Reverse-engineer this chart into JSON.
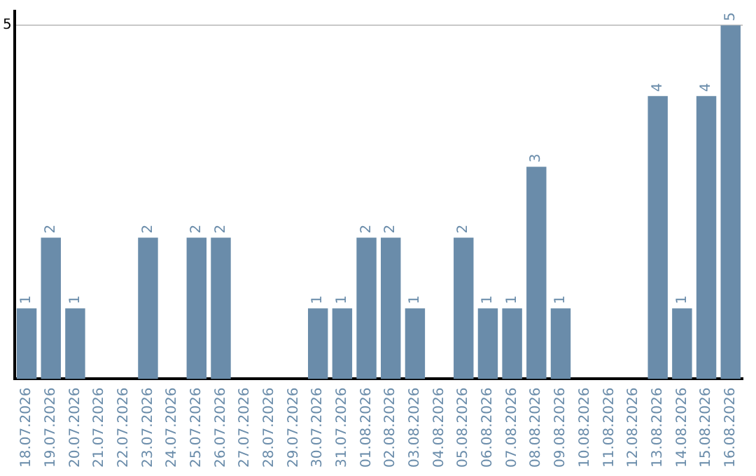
{
  "chart_data": {
    "type": "bar",
    "categories": [
      "18.07.2026",
      "19.07.2026",
      "20.07.2026",
      "21.07.2026",
      "22.07.2026",
      "23.07.2026",
      "24.07.2026",
      "25.07.2026",
      "26.07.2026",
      "27.07.2026",
      "28.07.2026",
      "29.07.2026",
      "30.07.2026",
      "31.07.2026",
      "01.08.2026",
      "02.08.2026",
      "03.08.2026",
      "04.08.2026",
      "05.08.2026",
      "06.08.2026",
      "07.08.2026",
      "08.08.2026",
      "09.08.2026",
      "10.08.2026",
      "11.08.2026",
      "12.08.2026",
      "13.08.2026",
      "14.08.2026",
      "15.08.2026",
      "16.08.2026"
    ],
    "values": [
      1,
      2,
      1,
      0,
      0,
      2,
      0,
      2,
      2,
      0,
      0,
      0,
      1,
      1,
      2,
      2,
      1,
      0,
      2,
      1,
      1,
      3,
      1,
      0,
      0,
      0,
      4,
      1,
      4,
      5
    ],
    "value_labels": [
      "1",
      "2",
      "1",
      null,
      null,
      "2",
      null,
      "2",
      "2",
      null,
      null,
      null,
      "1",
      "1",
      "2",
      "2",
      "1",
      null,
      "2",
      "1",
      "1",
      "3",
      "1",
      null,
      null,
      null,
      "4",
      "1",
      "4",
      "5"
    ],
    "color": "#6a8caa",
    "ylim": [
      0,
      5.2
    ],
    "yticks": [
      5
    ],
    "grid": "y",
    "legend": false
  }
}
